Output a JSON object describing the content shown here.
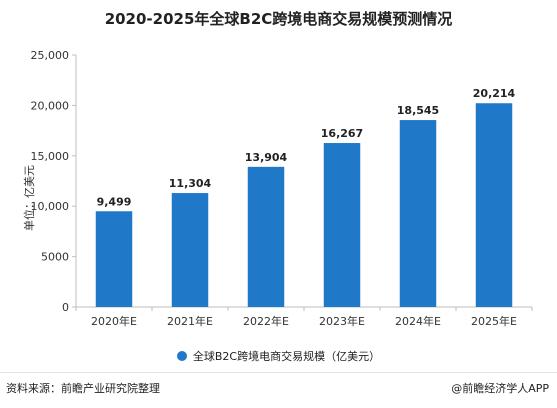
{
  "title": "2020-2025年全球B2C跨境电商交易规模预测情况",
  "ylabel": "单位：亿美元",
  "legend_label": "全球B2C跨境电商交易规模（亿美元）",
  "source": "资料来源：前瞻产业研究院整理",
  "brand": "@前瞻经济学人APP",
  "colors": {
    "bar": "#1f78c8",
    "axis": "#bfbfbf",
    "text": "#333333"
  },
  "chart_data": {
    "type": "bar",
    "categories": [
      "2020年E",
      "2021年E",
      "2022年E",
      "2023年E",
      "2024年E",
      "2025年E"
    ],
    "series": [
      {
        "name": "全球B2C跨境电商交易规模（亿美元）",
        "values": [
          9499,
          11304,
          13904,
          16267,
          18545,
          20214
        ]
      }
    ],
    "value_labels": [
      "9,499",
      "11,304",
      "13,904",
      "16,267",
      "18,545",
      "20,214"
    ],
    "yticks": [
      "0",
      "5000",
      "10,000",
      "15,000",
      "20,000",
      "25,000"
    ],
    "ylim": [
      0,
      25000
    ],
    "ylabel": "单位：亿美元",
    "grid": false,
    "legend_position": "bottom"
  }
}
